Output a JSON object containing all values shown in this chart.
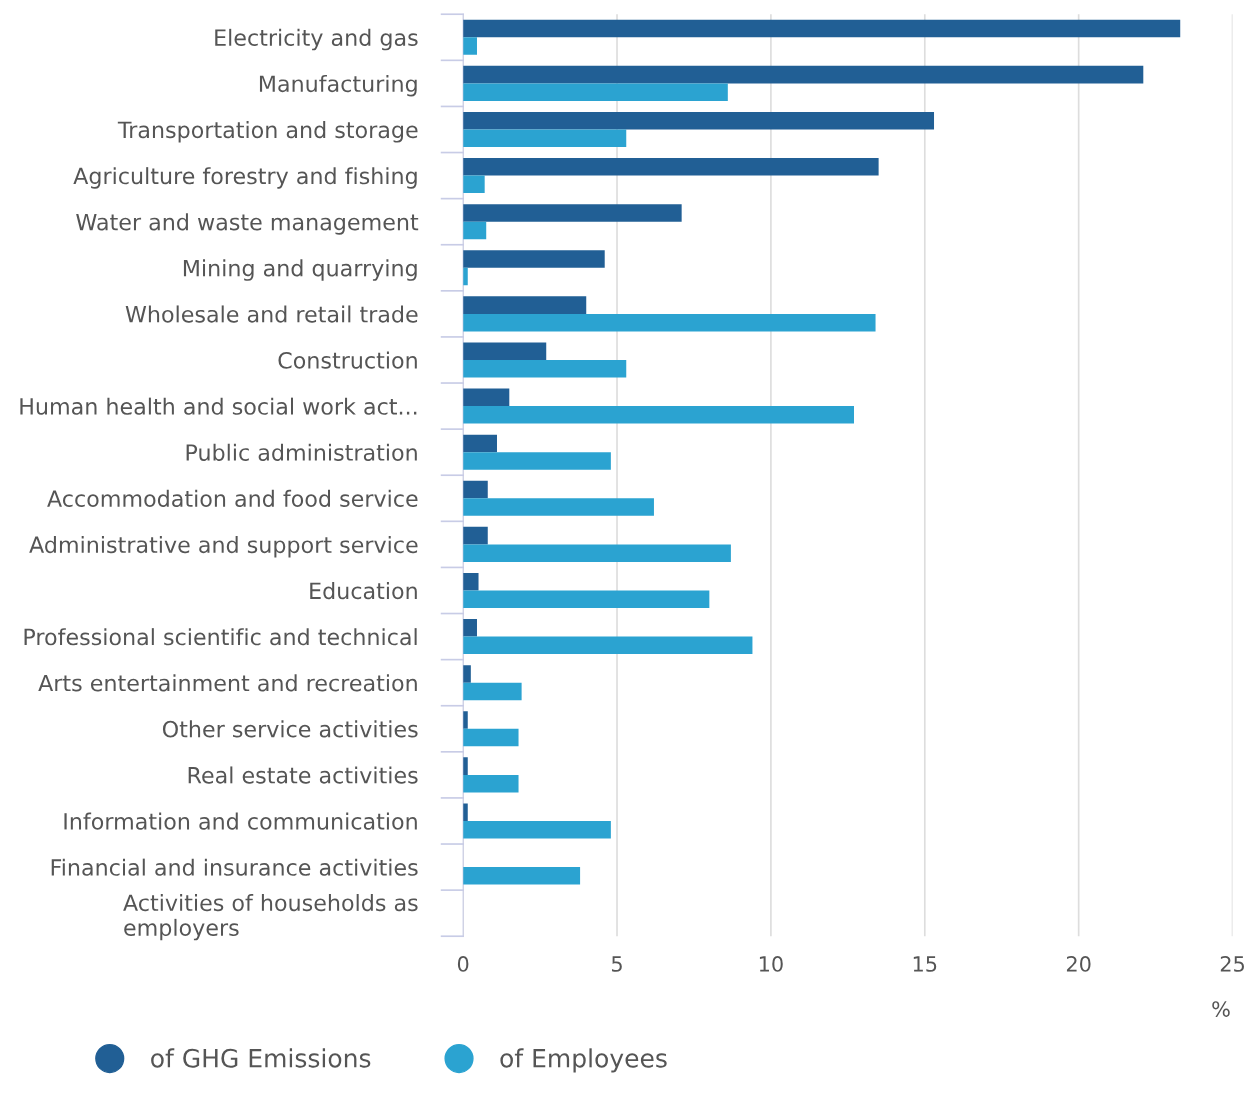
{
  "chart_data": {
    "type": "bar",
    "orientation": "horizontal",
    "xlabel": "%",
    "categories": [
      "Electricity and gas",
      "Manufacturing",
      "Transportation and storage",
      "Agriculture forestry and fishing",
      "Water and waste management",
      "Mining and quarrying",
      "Wholesale and retail trade",
      "Construction",
      "Human health and social work act...",
      "Public administration",
      "Accommodation and food service",
      "Administrative and support service",
      "Education",
      "Professional scientific and technical",
      "Arts entertainment and recreation",
      "Other service activities",
      "Real estate activities",
      "Information and communication",
      "Financial and insurance activities",
      "Activities of households as\nemployers"
    ],
    "series": [
      {
        "name": "of GHG Emissions",
        "color": "#215f95",
        "values": [
          23.3,
          22.1,
          15.3,
          13.5,
          7.1,
          4.6,
          4.0,
          2.7,
          1.5,
          1.1,
          0.8,
          0.8,
          0.5,
          0.45,
          0.25,
          0.15,
          0.15,
          0.15,
          0,
          0
        ]
      },
      {
        "name": "of Employees",
        "color": "#2ba3d1",
        "values": [
          0.45,
          8.6,
          5.3,
          0.7,
          0.75,
          0.15,
          13.4,
          5.3,
          12.7,
          4.8,
          6.2,
          8.7,
          8.0,
          9.4,
          1.9,
          1.8,
          1.8,
          4.8,
          3.8,
          0
        ]
      }
    ],
    "xlim": [
      0,
      25
    ],
    "xticks": [
      0,
      5,
      10,
      15,
      20,
      25
    ],
    "grid": "x",
    "legend": "bottom left"
  }
}
